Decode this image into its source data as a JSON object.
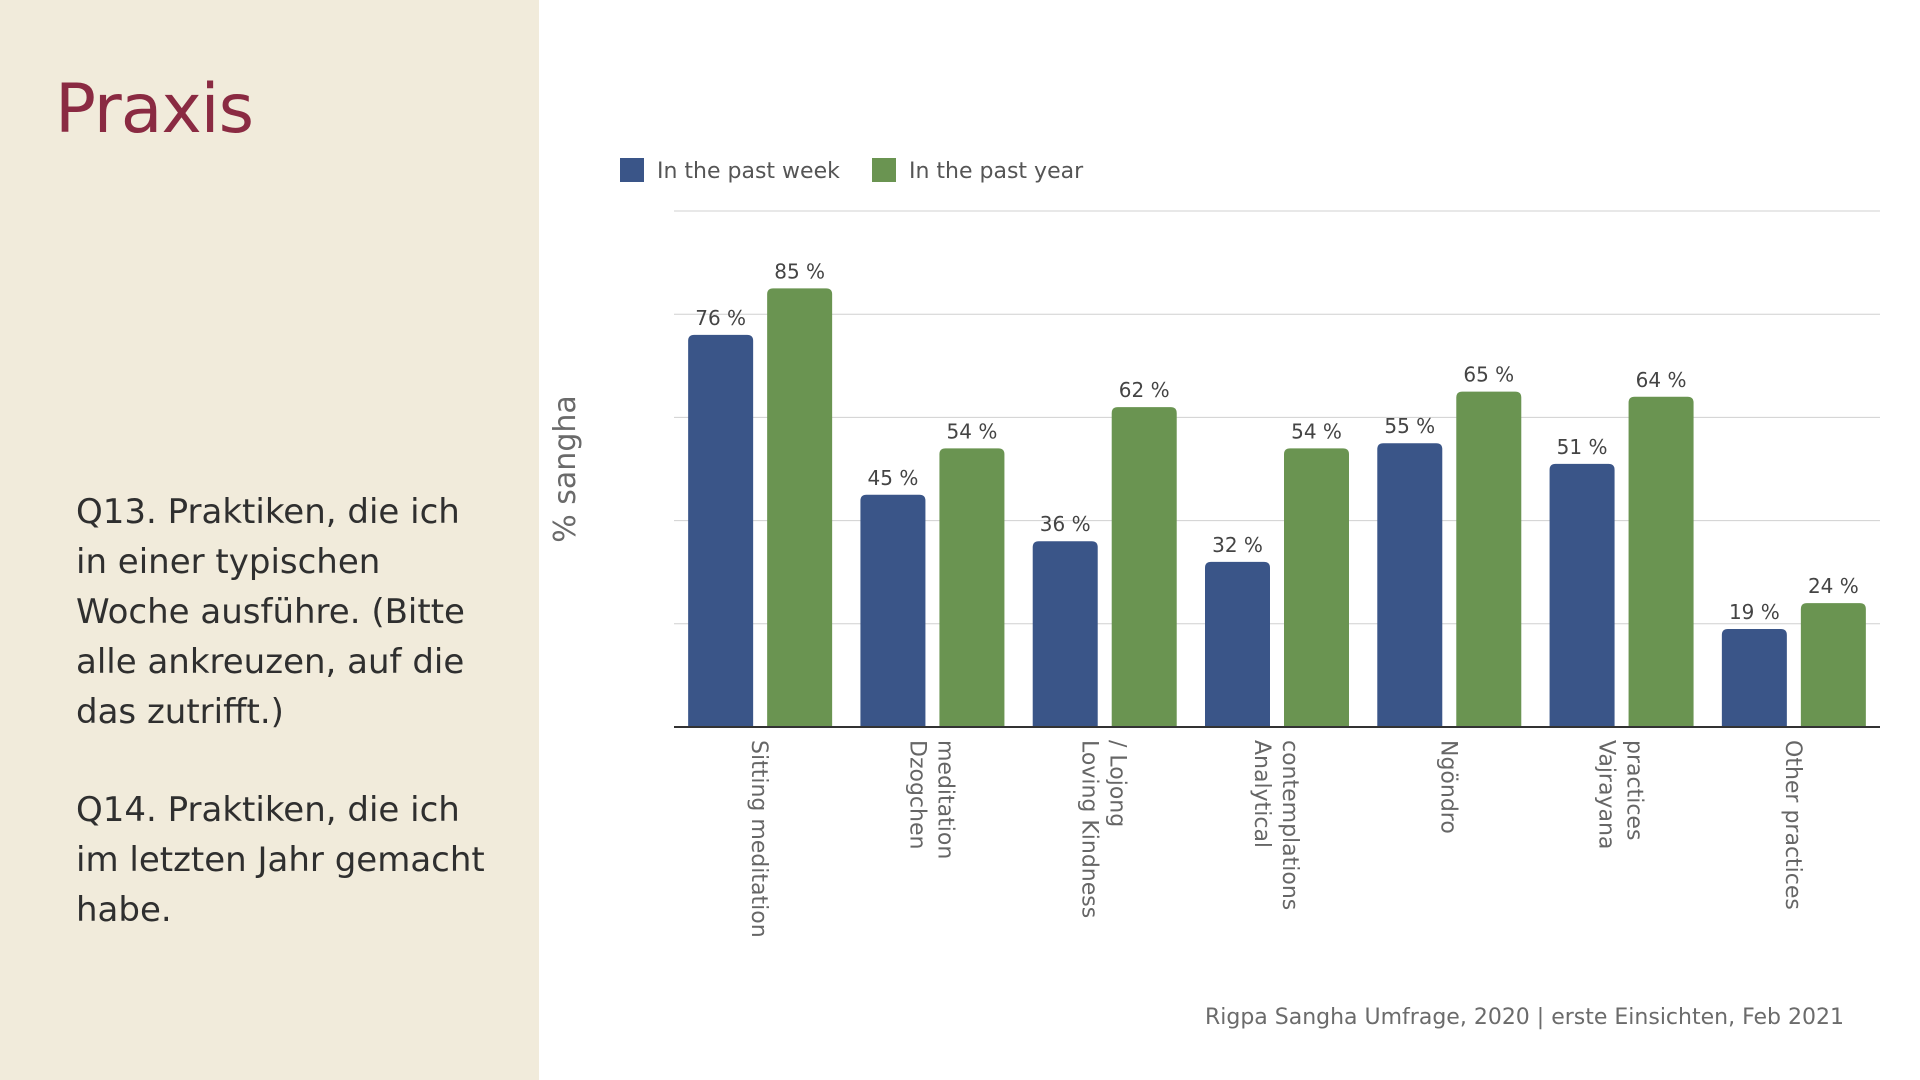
{
  "slide": {
    "title": "Praxis",
    "question_1": "Q13. Praktiken, die ich in einer typischen Woche ausführe. (Bitte alle ankreuzen, auf die das zutrifft.)",
    "question_2": "Q14. Praktiken, die ich im letzten Jahr gemacht habe.",
    "footer": "Rigpa Sangha Umfrage, 2020  |  erste Einsichten, Feb 2021"
  },
  "colors": {
    "week": "#3a5588",
    "year": "#6a9451",
    "title": "#8a2a42",
    "sidebar_bg": "#f1ebdb",
    "grid": "#d0d0d0",
    "axis": "#333333"
  },
  "chart_data": {
    "type": "bar",
    "title": "",
    "xlabel": "",
    "ylabel": "% sangha",
    "ylim": [
      0,
      100
    ],
    "grid": true,
    "legend_position": "top-left",
    "value_suffix": " %",
    "categories": [
      "Sitting meditation",
      "Dzogchen meditation",
      "Loving Kindness / Lojong",
      "Analytical contemplations",
      "Ngöndro",
      "Vajrayana practices",
      "Other practices"
    ],
    "category_lines": [
      [
        "Sitting meditation"
      ],
      [
        "Dzogchen",
        "meditation"
      ],
      [
        "Loving Kindness",
        "/ Lojong"
      ],
      [
        "Analytical",
        "contemplations"
      ],
      [
        "Ngöndro"
      ],
      [
        "Vajrayana",
        "practices"
      ],
      [
        "Other practices"
      ]
    ],
    "series": [
      {
        "name": "In the past week",
        "values": [
          76,
          45,
          36,
          32,
          55,
          51,
          19
        ]
      },
      {
        "name": "In the past year",
        "values": [
          85,
          54,
          62,
          54,
          65,
          64,
          24
        ]
      }
    ]
  }
}
